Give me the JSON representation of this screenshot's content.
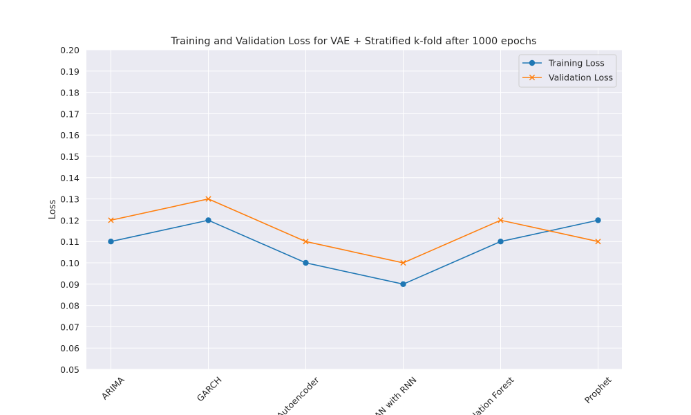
{
  "chart_data": {
    "type": "line",
    "title": "Training and Validation Loss for VAE + Stratified k-fold after 1000 epochs",
    "xlabel": "",
    "ylabel": "Loss",
    "categories": [
      "ARIMA",
      "GARCH",
      "Autoencoder",
      "GAN with RNN",
      "Isolation Forest",
      "Prophet"
    ],
    "ylim": [
      0.05,
      0.2
    ],
    "yticks": [
      "0.05",
      "0.06",
      "0.07",
      "0.08",
      "0.09",
      "0.10",
      "0.11",
      "0.12",
      "0.13",
      "0.14",
      "0.15",
      "0.16",
      "0.17",
      "0.18",
      "0.19",
      "0.20"
    ],
    "grid": true,
    "legend_position": "top-right",
    "background": "#eaeaf2",
    "series": [
      {
        "name": "Training Loss",
        "marker": "circle",
        "color": "#1f77b4",
        "values": [
          0.11,
          0.12,
          0.1,
          0.09,
          0.11,
          0.12
        ]
      },
      {
        "name": "Validation Loss",
        "marker": "x",
        "color": "#ff7f0e",
        "values": [
          0.12,
          0.13,
          0.11,
          0.1,
          0.12,
          0.11
        ]
      }
    ]
  }
}
